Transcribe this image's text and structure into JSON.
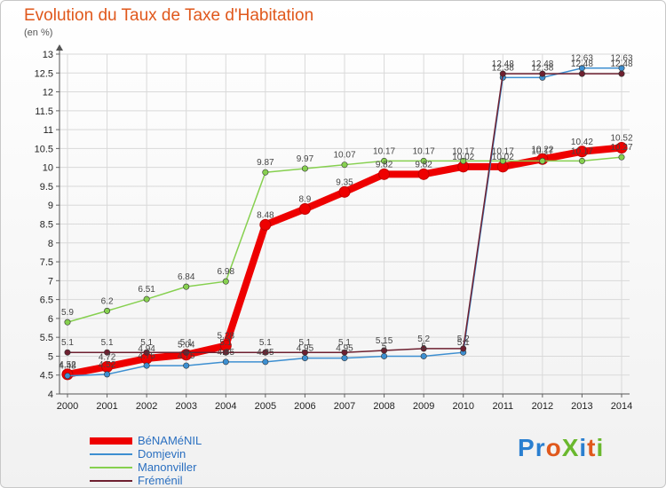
{
  "header": {
    "title": "Evolution du Taux de Taxe d'Habitation",
    "unit": "(en %)"
  },
  "logo": {
    "text": "ProXiti",
    "colors": [
      "#2a7fd0",
      "#2a7fd0",
      "#e0581c",
      "#6ab82e",
      "#2a7fd0",
      "#e0581c",
      "#6ab82e"
    ]
  },
  "chart_data": {
    "type": "line",
    "title": "Evolution du Taux de Taxe d'Habitation",
    "ylabel": "(en %)",
    "x": [
      "2000",
      "2001",
      "2002",
      "2003",
      "2004",
      "2005",
      "2006",
      "2007",
      "2008",
      "2009",
      "2010",
      "2011",
      "2012",
      "2013",
      "2014"
    ],
    "ylim": [
      4,
      13
    ],
    "yticks": [
      "4",
      "4.5",
      "5",
      "5.5",
      "6",
      "6.5",
      "7",
      "7.5",
      "8",
      "8.5",
      "9",
      "9.5",
      "10",
      "10.5",
      "11",
      "11.5",
      "12",
      "12.5",
      "13"
    ],
    "grid": true,
    "legend_position": "bottom-left",
    "series": [
      {
        "name": "BéNAMéNIL",
        "color": "#ee0000",
        "values": [
          4.52,
          4.72,
          4.94,
          5.04,
          5.28,
          8.48,
          8.9,
          9.35,
          9.82,
          9.82,
          10.02,
          10.02,
          10.22,
          10.42,
          10.52
        ],
        "labels": [
          "4.52",
          "4.72",
          "4.94",
          "5.04",
          "5.28",
          "8.48",
          "8.9",
          "9.35",
          "9.82",
          "9.82",
          "10.02",
          "10.02",
          "10.22",
          "10.42",
          "10.52"
        ]
      },
      {
        "name": "Domjevin",
        "color": "#3d8fd1",
        "values": [
          4.48,
          4.52,
          4.75,
          4.75,
          4.85,
          4.85,
          4.95,
          4.95,
          5.0,
          5.0,
          5.1,
          12.38,
          12.38,
          12.63,
          12.63
        ],
        "labels": [
          "4.48",
          "4.52",
          "4.75",
          "4.75",
          "4.85",
          "4.85",
          "4.95",
          "4.95",
          "5",
          "5",
          "5.1",
          "12.38",
          "12.38",
          "12.63",
          "12.63"
        ]
      },
      {
        "name": "Manonviller",
        "color": "#86d04f",
        "values": [
          5.9,
          6.2,
          6.51,
          6.84,
          6.98,
          9.87,
          9.97,
          10.07,
          10.17,
          10.17,
          10.17,
          10.17,
          10.17,
          10.17,
          10.27
        ],
        "labels": [
          "5.9",
          "6.2",
          "6.51",
          "6.84",
          "6.98",
          "9.87",
          "9.97",
          "10.07",
          "10.17",
          "10.17",
          "10.17",
          "10.17",
          "10.17",
          "10.17",
          "10.27"
        ]
      },
      {
        "name": "Fréménil",
        "color": "#6e2030",
        "values": [
          5.1,
          5.1,
          5.1,
          5.1,
          5.1,
          5.1,
          5.1,
          5.1,
          5.15,
          5.2,
          5.2,
          12.48,
          12.48,
          12.48,
          12.48
        ],
        "labels": [
          "5.1",
          "5.1",
          "5.1",
          "5.1",
          "5.1",
          "5.1",
          "5.1",
          "5.1",
          "5.15",
          "5.2",
          "5.2",
          "12.48",
          "12.48",
          "12.48",
          "12.48"
        ]
      }
    ]
  }
}
